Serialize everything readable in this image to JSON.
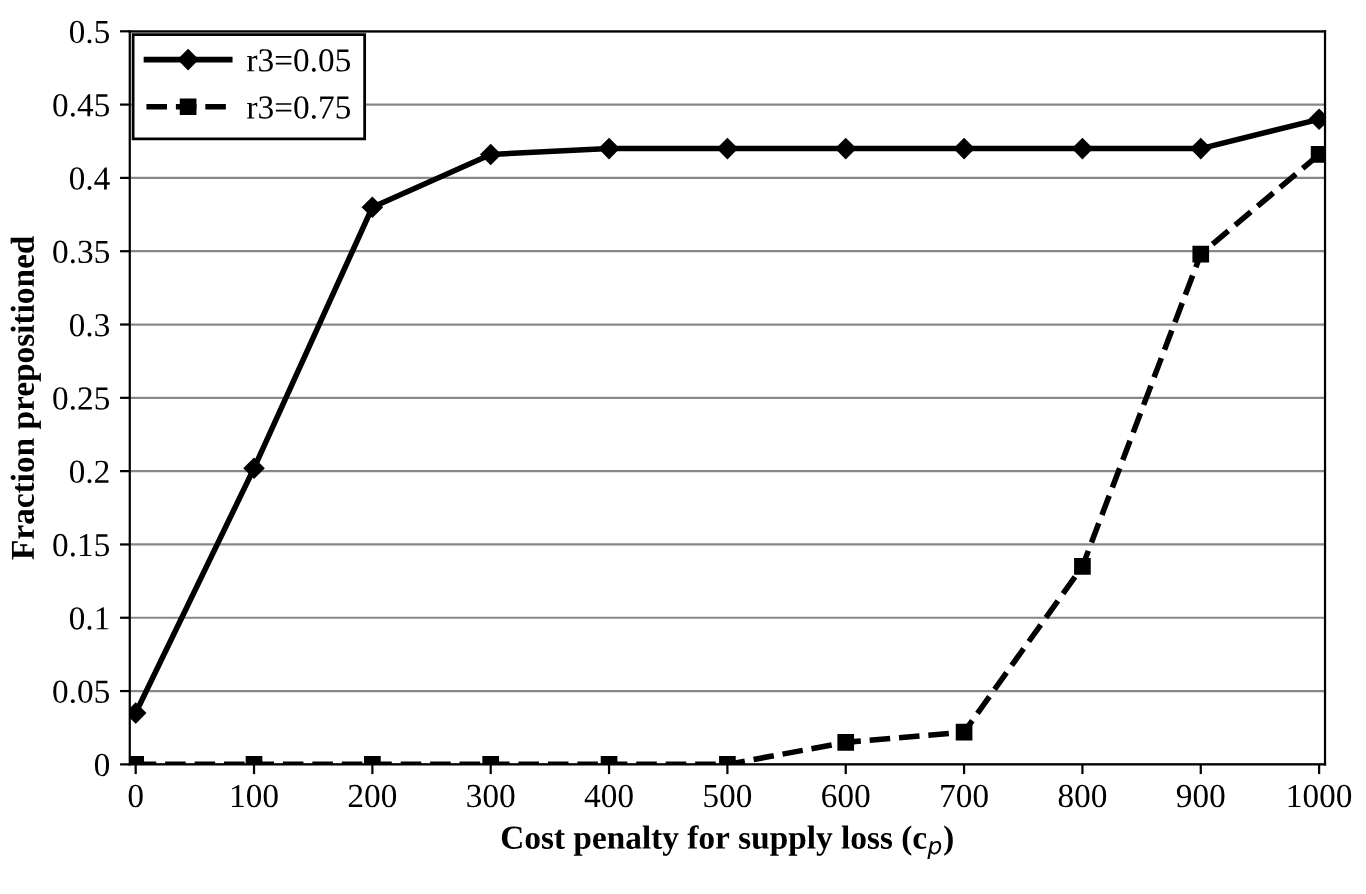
{
  "chart_data": {
    "type": "line",
    "xlabel": "Cost penalty for supply loss (c$_{p}$)",
    "ylabel": "Fraction prepositioned",
    "categories": [
      "0",
      "100",
      "200",
      "300",
      "400",
      "500",
      "600",
      "700",
      "800",
      "900",
      "1000"
    ],
    "series": [
      {
        "name": "r3=0.05",
        "color": "#000000",
        "marker": "diamond",
        "line_style": "solid",
        "values": [
          0.035,
          0.202,
          0.38,
          0.416,
          0.42,
          0.42,
          0.42,
          0.42,
          0.42,
          0.42,
          0.44
        ]
      },
      {
        "name": "r3=0.75",
        "color": "#000000",
        "marker": "square",
        "line_style": "dashed",
        "values": [
          0,
          0,
          0,
          0,
          0,
          0,
          0.015,
          0.022,
          0.135,
          0.348,
          0.416
        ]
      }
    ],
    "ylim": [
      0,
      0.5
    ],
    "yticks": [
      {
        "value": 0,
        "label": "0"
      },
      0.05,
      0.1,
      0.15,
      0.2,
      0.25,
      0.3,
      0.35,
      0.4,
      0.45,
      0.5
    ],
    "grid": "y",
    "legend": "top left"
  }
}
